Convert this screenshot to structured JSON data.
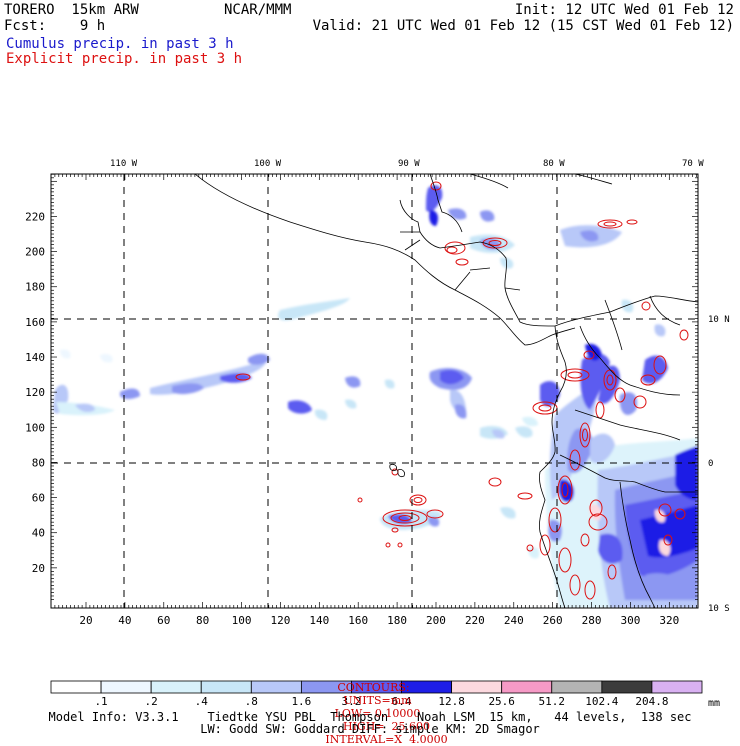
{
  "header": {
    "left_line1": "TORERO  15km ARW",
    "center_line1": "NCAR/MMM",
    "right_line1": "Init: 12 UTC Wed 01 Feb 12",
    "left_line2": "Fcst:    9 h",
    "right_line2": "Valid: 21 UTC Wed 01 Feb 12 (15 CST Wed 01 Feb 12)",
    "field1": "Cumulus precip. in past 3 h",
    "field1_color": "#1a1acc",
    "field2": "Explicit precip. in past 3 h",
    "field2_color": "#dd1111"
  },
  "map": {
    "lon_labels": [
      "110 W",
      "100 W",
      "90 W",
      "80 W",
      "70 W"
    ],
    "lat_labels": [
      "10 N",
      "0",
      "10 S"
    ],
    "x_ticks": [
      "20",
      "40",
      "60",
      "80",
      "100",
      "120",
      "140",
      "160",
      "180",
      "200",
      "220",
      "240",
      "260",
      "280",
      "300",
      "320"
    ],
    "y_ticks": [
      "20",
      "40",
      "60",
      "80",
      "100",
      "120",
      "140",
      "160",
      "180",
      "200",
      "220"
    ]
  },
  "contours": {
    "label": "CONTOURS:",
    "units": "UNITS=mm",
    "low": "LOW= 0.10000",
    "high": "HIGH=  25.600",
    "interval": "INTERVAL=X  4.0000",
    "color": "#cc0000"
  },
  "colorbar": {
    "unit": "mm",
    "labels": [
      ".1",
      ".2",
      ".4",
      ".8",
      "1.6",
      "3.2",
      "6.4",
      "12.8",
      "25.6",
      "51.2",
      "102.4",
      "204.8"
    ],
    "colors": [
      "#ffffff",
      "#eef7ff",
      "#d9f2fb",
      "#c8e6f7",
      "#b8c8f8",
      "#8c97f2",
      "#5c5cf0",
      "#1e1ee6",
      "#fcd9df",
      "#f69ac6",
      "#b4b4b4",
      "#3c3c3c",
      "#d9b1f2"
    ]
  },
  "model_info": {
    "line1": "Model Info: V3.3.1    Tiedtke YSU PBL  Thompson    Noah LSM  15 km,   44 levels,  138 sec",
    "line2": "LW: Godd SW: Goddard DIFF: simple KM: 2D Smagor"
  }
}
